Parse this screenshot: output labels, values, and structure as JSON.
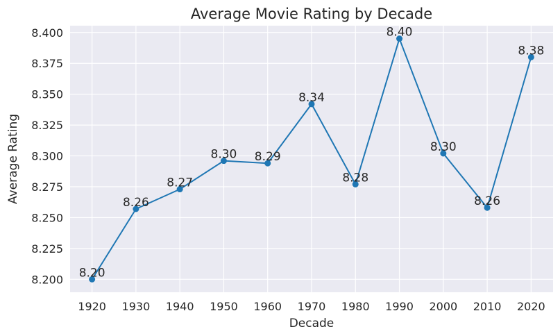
{
  "chart_data": {
    "type": "line",
    "title": "Average Movie Rating by Decade",
    "xlabel": "Decade",
    "ylabel": "Average Rating",
    "x": [
      "1920",
      "1930",
      "1940",
      "1950",
      "1960",
      "1970",
      "1980",
      "1990",
      "2000",
      "2010",
      "2020"
    ],
    "values": [
      8.2,
      8.257,
      8.273,
      8.296,
      8.294,
      8.342,
      8.277,
      8.395,
      8.302,
      8.258,
      8.38
    ],
    "data_labels": [
      "8.20",
      "8.26",
      "8.27",
      "8.30",
      "8.29",
      "8.34",
      "8.28",
      "8.40",
      "8.30",
      "8.26",
      "8.38"
    ],
    "yticks": [
      "8.200",
      "8.225",
      "8.250",
      "8.275",
      "8.300",
      "8.325",
      "8.350",
      "8.375",
      "8.400"
    ],
    "ylim": [
      8.1895,
      8.4055
    ],
    "grid": true,
    "colors": {
      "line": "#1f77b4",
      "background": "#eaeaf2",
      "grid": "#ffffff"
    }
  }
}
